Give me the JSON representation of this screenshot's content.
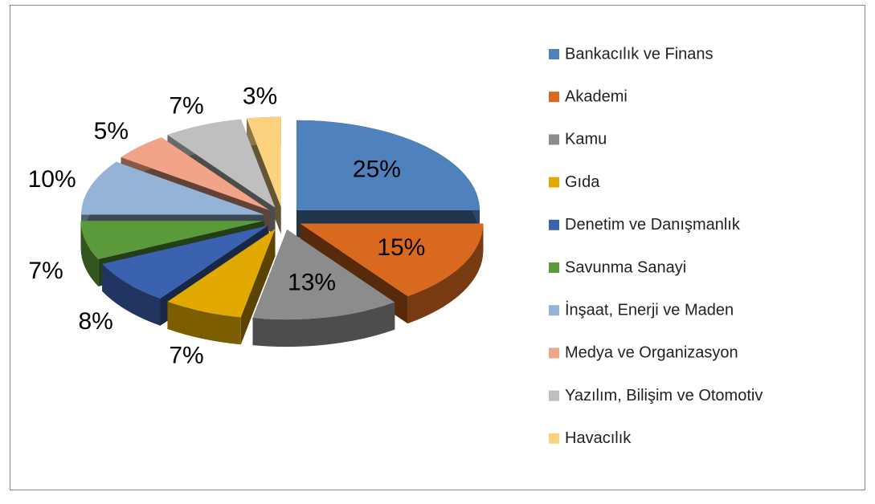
{
  "chart_data": {
    "type": "pie",
    "categories": [
      "Bankacılık ve Finans",
      "Akademi",
      "Kamu",
      "Gıda",
      "Denetim ve Danışmanlık",
      "Savunma Sanayi",
      "İnşaat, Enerji ve Maden",
      "Medya ve Organizasyon",
      "Yazılım, Bilişim ve Otomotiv",
      "Havacılık"
    ],
    "values": [
      25,
      15,
      13,
      7,
      8,
      7,
      10,
      5,
      7,
      3
    ],
    "value_labels": [
      "25%",
      "15%",
      "13%",
      "7%",
      "8%",
      "7%",
      "10%",
      "5%",
      "7%",
      "3%"
    ],
    "colors": [
      "#4f81bd",
      "#d9691f",
      "#8c8c8c",
      "#e2a900",
      "#3b62b0",
      "#5a9a3a",
      "#95b3d7",
      "#f1a488",
      "#bfbfbf",
      "#fcd27f"
    ],
    "legend": "right"
  }
}
